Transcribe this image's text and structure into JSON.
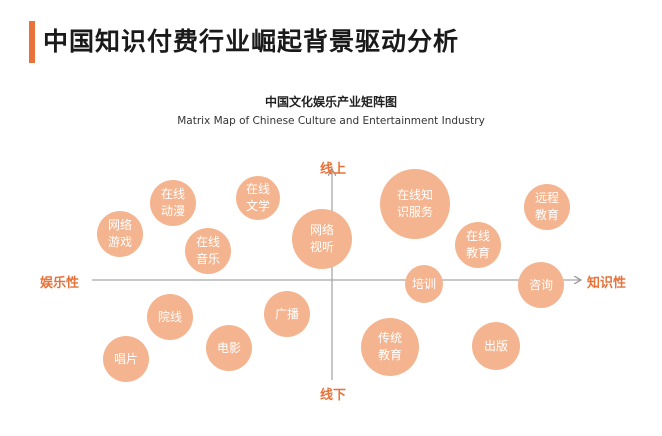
{
  "header": {
    "title": "中国知识付费行业崛起背景驱动分析"
  },
  "diagram": {
    "title_cn": "中国文化娱乐产业矩阵图",
    "title_en": "Matrix Map of Chinese Culture and Entertainment Industry",
    "axes": {
      "top": "线上",
      "bottom": "线下",
      "left": "娱乐性",
      "right": "知识性"
    },
    "bubbles": [
      {
        "id": "online-animation",
        "label": "在线\n动漫"
      },
      {
        "id": "online-literature",
        "label": "在线\n文学"
      },
      {
        "id": "online-knowledge-service",
        "label": "在线知\n识服务"
      },
      {
        "id": "remote-education",
        "label": "远程\n教育"
      },
      {
        "id": "online-game",
        "label": "网络\n游戏"
      },
      {
        "id": "online-video",
        "label": "网络\n视听"
      },
      {
        "id": "online-music",
        "label": "在线\n音乐"
      },
      {
        "id": "online-education",
        "label": "在线\n教育"
      },
      {
        "id": "training",
        "label": "培训"
      },
      {
        "id": "consulting",
        "label": "咨询"
      },
      {
        "id": "theater",
        "label": "院线"
      },
      {
        "id": "broadcast",
        "label": "广播"
      },
      {
        "id": "film",
        "label": "电影"
      },
      {
        "id": "records",
        "label": "唱片"
      },
      {
        "id": "traditional-education",
        "label": "传统\n教育"
      },
      {
        "id": "publishing",
        "label": "出版"
      }
    ]
  }
}
